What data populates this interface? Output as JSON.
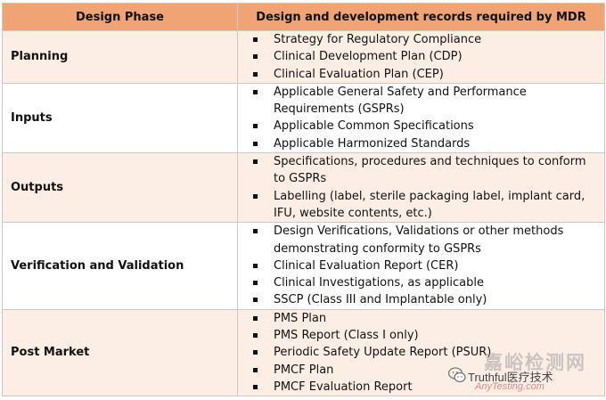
{
  "table": {
    "headers": {
      "phase": "Design Phase",
      "records": "Design and development records required by MDR"
    },
    "rows": [
      {
        "phase": "Planning",
        "items": [
          "Strategy for Regulatory Compliance",
          "Clinical Development Plan (CDP)",
          "Clinical Evaluation Plan (CEP)"
        ]
      },
      {
        "phase": "Inputs",
        "items": [
          "Applicable  General Safety and Performance Requirements (GSPRs)",
          "Applicable Common Specifications",
          "Applicable Harmonized Standards"
        ]
      },
      {
        "phase": "Outputs",
        "items": [
          "Specifications, procedures and techniques to conform to GSPRs",
          "Labelling (label, sterile packaging label, implant card, IFU, website contents, etc.)"
        ]
      },
      {
        "phase": "Verification and Validation",
        "items": [
          "Design Verifications, Validations or other methods demonstrating conformity to GSPRs",
          "Clinical Evaluation Report (CER)",
          "Clinical Investigations, as applicable",
          "SSCP (Class III and Implantable only)"
        ]
      },
      {
        "phase": "Post Market",
        "items": [
          "PMS Plan",
          "PMS Report (Class I only)",
          "Periodic Safety Update Report (PSUR)",
          "PMCF Plan",
          "PMCF Evaluation Report"
        ]
      }
    ]
  },
  "watermark": {
    "top_text": "嘉峪检测网",
    "brand": "Truthful医疗技术",
    "sub": "AnyTesting.com",
    "icon": "wechat-icon"
  },
  "colors": {
    "header_bg": "#f0a374",
    "band_bg": "#fdeee5",
    "border": "#c9c9c9"
  }
}
